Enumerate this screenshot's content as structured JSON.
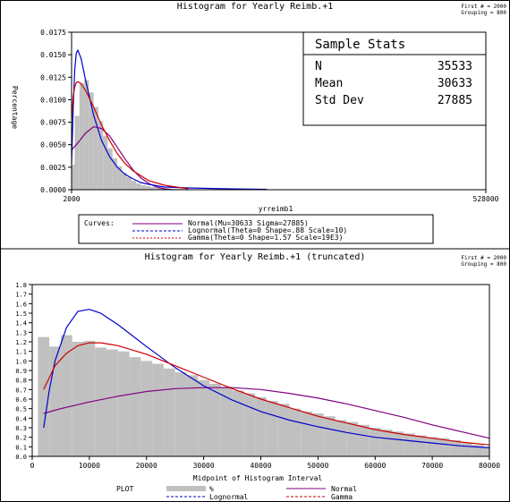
{
  "chart_data": [
    {
      "type": "bar",
      "title": "Histogram for Yearly Reimb.+1",
      "corner_note": [
        "First # = 2000",
        "Grouping = 800"
      ],
      "xlabel": "yrreimb1",
      "ylabel": "Percentage",
      "xlim": [
        2000,
        528000
      ],
      "ylim": [
        0,
        0.0175
      ],
      "y_ticks": [
        "0.0000",
        "0.0025",
        "0.0050",
        "0.0075",
        "0.0100",
        "0.0125",
        "0.0150",
        "0.0175"
      ],
      "x_ticks": [
        "2000",
        "528000"
      ],
      "grid": false,
      "stats_box": {
        "title": "Sample Stats",
        "rows": [
          {
            "label": "N",
            "value": "35533"
          },
          {
            "label": "Mean",
            "value": "30633"
          },
          {
            "label": "Std Dev",
            "value": "27885"
          }
        ]
      },
      "legend": {
        "heading": "Curves:",
        "entries": [
          {
            "label": "Normal(Mu=30633 Sigma=27885)",
            "color": "#800080",
            "dash": "solid"
          },
          {
            "label": "Lognormal(Theta=0 Shape=.88 Scale=10)",
            "color": "#0000cc",
            "dash": "dashed"
          },
          {
            "label": "Gamma(Theta=0 Shape=1.57 Scale=19E3)",
            "color": "#cc0000",
            "dash": "dashed"
          }
        ]
      },
      "histogram": {
        "x": [
          3000,
          9000,
          15000,
          21000,
          27000,
          33000,
          39000,
          45000,
          51000,
          57000,
          63000,
          69000,
          75000,
          81000,
          87000,
          93000,
          99000,
          105000,
          111000,
          117000,
          123000,
          129000,
          135000,
          141000,
          147000,
          153000,
          159000,
          165000,
          171000,
          177000,
          183000,
          189000
        ],
        "values": [
          0.0028,
          0.0082,
          0.0118,
          0.0122,
          0.0108,
          0.0092,
          0.0076,
          0.006,
          0.0046,
          0.0035,
          0.0026,
          0.0019,
          0.0014,
          0.001,
          0.0007,
          0.0005,
          0.0004,
          0.0003,
          0.0002,
          0.0002,
          0.00015,
          0.0001,
          0.0001,
          8e-05,
          6e-05,
          5e-05,
          4e-05,
          3e-05,
          3e-05,
          2e-05,
          2e-05,
          1e-05
        ]
      },
      "series": [
        {
          "name": "Normal",
          "color": "#800080",
          "x": [
            2000,
            10000,
            20000,
            30000,
            40000,
            50000,
            60000,
            70000,
            80000,
            90000,
            100000,
            110000,
            120000,
            130000
          ],
          "values": [
            0.0044,
            0.0052,
            0.0063,
            0.007,
            0.0068,
            0.006,
            0.0047,
            0.0034,
            0.0022,
            0.0013,
            0.0007,
            0.0003,
            0.0001,
            0.0
          ]
        },
        {
          "name": "Lognormal",
          "color": "#0000cc",
          "x": [
            2000,
            4000,
            6000,
            8000,
            10000,
            14000,
            20000,
            30000,
            40000,
            50000,
            60000,
            70000,
            80000,
            90000,
            100000,
            120000,
            150000,
            200000,
            250000
          ],
          "values": [
            0.0029,
            0.009,
            0.0133,
            0.0152,
            0.0155,
            0.0146,
            0.0121,
            0.0083,
            0.0055,
            0.0037,
            0.0025,
            0.0017,
            0.0012,
            0.0008,
            0.0006,
            0.0003,
            0.0002,
            0.0001,
            4e-05
          ]
        },
        {
          "name": "Gamma",
          "color": "#cc0000",
          "x": [
            2000,
            4000,
            6000,
            8000,
            10000,
            14000,
            20000,
            30000,
            40000,
            50000,
            60000,
            70000,
            80000,
            100000,
            120000,
            150000
          ],
          "values": [
            0.0078,
            0.0103,
            0.0114,
            0.0119,
            0.012,
            0.0118,
            0.011,
            0.0092,
            0.0072,
            0.0055,
            0.004,
            0.0029,
            0.0021,
            0.001,
            0.0005,
            0.0001
          ]
        }
      ]
    },
    {
      "type": "bar",
      "title": "Histogram for Yearly Reimb.+1 (truncated)",
      "corner_note": [
        "First # = 2000",
        "Grouping = 800"
      ],
      "xlabel": "Midpoint of Histogram Interval",
      "ylabel": "",
      "xlim": [
        0,
        80000
      ],
      "ylim": [
        0,
        1.8
      ],
      "y_ticks": [
        "0.0",
        "0.1",
        "0.2",
        "0.3",
        "0.4",
        "0.5",
        "0.6",
        "0.7",
        "0.8",
        "0.9",
        "1.0",
        "1.1",
        "1.2",
        "1.3",
        "1.4",
        "1.5",
        "1.6",
        "1.7",
        "1.8"
      ],
      "x_ticks": [
        "0",
        "10000",
        "20000",
        "30000",
        "40000",
        "50000",
        "60000",
        "70000",
        "80000"
      ],
      "grid": false,
      "legend": {
        "heading": "PLOT",
        "entries": [
          {
            "label": "%",
            "color": "#c0c0c0",
            "dash": "bar"
          },
          {
            "label": "Normal",
            "color": "#800080",
            "dash": "solid"
          },
          {
            "label": "Lognormal",
            "color": "#0000cc",
            "dash": "dashed"
          },
          {
            "label": "Gamma",
            "color": "#cc0000",
            "dash": "dashed"
          }
        ]
      },
      "histogram": {
        "x": [
          2000,
          4000,
          6000,
          8000,
          10000,
          12000,
          14000,
          16000,
          18000,
          20000,
          22000,
          24000,
          26000,
          28000,
          30000,
          32000,
          34000,
          36000,
          38000,
          40000,
          42000,
          44000,
          46000,
          48000,
          50000,
          52000,
          54000,
          56000,
          58000,
          60000,
          62000,
          64000,
          66000,
          68000,
          70000,
          72000,
          74000,
          76000,
          78000,
          80000
        ],
        "values": [
          1.25,
          1.15,
          1.27,
          1.2,
          1.21,
          1.14,
          1.12,
          1.1,
          1.04,
          1.0,
          0.97,
          0.92,
          0.88,
          0.85,
          0.8,
          0.76,
          0.73,
          0.69,
          0.66,
          0.62,
          0.58,
          0.55,
          0.5,
          0.47,
          0.45,
          0.42,
          0.38,
          0.36,
          0.33,
          0.3,
          0.28,
          0.26,
          0.24,
          0.22,
          0.2,
          0.19,
          0.17,
          0.14,
          0.12,
          0.1
        ]
      },
      "series": [
        {
          "name": "Normal",
          "color": "#800080",
          "x": [
            2000,
            5000,
            10000,
            15000,
            20000,
            25000,
            30000,
            35000,
            40000,
            45000,
            50000,
            55000,
            60000,
            65000,
            70000,
            75000,
            80000
          ],
          "values": [
            0.45,
            0.5,
            0.57,
            0.63,
            0.68,
            0.71,
            0.72,
            0.72,
            0.7,
            0.66,
            0.61,
            0.55,
            0.48,
            0.41,
            0.33,
            0.26,
            0.19
          ]
        },
        {
          "name": "Lognormal",
          "color": "#0000cc",
          "x": [
            2000,
            3000,
            4000,
            6000,
            8000,
            10000,
            12000,
            15000,
            20000,
            25000,
            30000,
            35000,
            40000,
            45000,
            50000,
            55000,
            60000,
            65000,
            70000,
            75000,
            80000
          ],
          "values": [
            0.3,
            0.7,
            1.0,
            1.35,
            1.52,
            1.54,
            1.5,
            1.38,
            1.15,
            0.93,
            0.74,
            0.59,
            0.47,
            0.38,
            0.31,
            0.25,
            0.2,
            0.17,
            0.14,
            0.11,
            0.09
          ]
        },
        {
          "name": "Gamma",
          "color": "#cc0000",
          "x": [
            2000,
            4000,
            6000,
            8000,
            10000,
            12000,
            15000,
            20000,
            25000,
            30000,
            35000,
            40000,
            45000,
            50000,
            55000,
            60000,
            65000,
            70000,
            75000,
            80000
          ],
          "values": [
            0.7,
            0.95,
            1.08,
            1.16,
            1.19,
            1.19,
            1.16,
            1.07,
            0.95,
            0.83,
            0.71,
            0.6,
            0.51,
            0.42,
            0.35,
            0.28,
            0.23,
            0.19,
            0.15,
            0.12
          ]
        }
      ]
    }
  ]
}
